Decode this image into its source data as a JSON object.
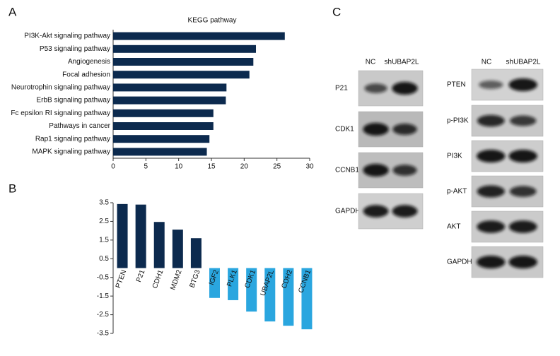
{
  "panel_labels": [
    "A",
    "B",
    "C"
  ],
  "chart_data": [
    {
      "type": "barh",
      "title": "KEGG pathway",
      "categories": [
        "PI3K-Akt signaling pathway",
        "P53 signaling pathway",
        "Angiogenesis",
        "Focal adhesion",
        "Neurotrophin signaling pathway",
        "ErbB signaling pathway",
        "Fc epsilon RI signaling pathway",
        "Pathways in cancer",
        "Rap1 signaling pathway",
        "MAPK signaling pathway"
      ],
      "values": [
        26.2,
        21.8,
        21.4,
        20.8,
        17.3,
        17.2,
        15.3,
        15.3,
        14.7,
        14.3
      ],
      "color": "#0c2a4e",
      "xlim": [
        0,
        30
      ],
      "xticks": [
        0,
        5,
        10,
        15,
        20,
        25,
        30
      ]
    },
    {
      "type": "bar",
      "categories": [
        "PTEN",
        "P21",
        "CDH1",
        "MDM2",
        "BTG3",
        "IGF2",
        "PLK1",
        "CDK1",
        "UBAP2L",
        "CDH2",
        "CCNB1"
      ],
      "values": [
        3.43,
        3.4,
        2.47,
        2.06,
        1.6,
        -1.6,
        -1.72,
        -2.33,
        -2.86,
        -3.09,
        -3.28
      ],
      "colors": [
        "#0c2a4e",
        "#0c2a4e",
        "#0c2a4e",
        "#0c2a4e",
        "#0c2a4e",
        "#2aa6df",
        "#2aa6df",
        "#2aa6df",
        "#2aa6df",
        "#2aa6df",
        "#2aa6df"
      ],
      "ylim": [
        -3.5,
        3.5
      ],
      "yticks": [
        3.5,
        2.5,
        1.5,
        0.5,
        -0.5,
        -1.5,
        -2.5,
        -3.5
      ]
    }
  ],
  "blots": {
    "left": {
      "columns": [
        "NC",
        "shUBAP2L"
      ],
      "rows": [
        "P21",
        "CDK1",
        "CCNB1",
        "GAPDH"
      ]
    },
    "right": {
      "columns": [
        "NC",
        "shUBAP2L"
      ],
      "rows": [
        "PTEN",
        "p-PI3K",
        "PI3K",
        "p-AKT",
        "AKT",
        "GAPDH"
      ]
    }
  }
}
